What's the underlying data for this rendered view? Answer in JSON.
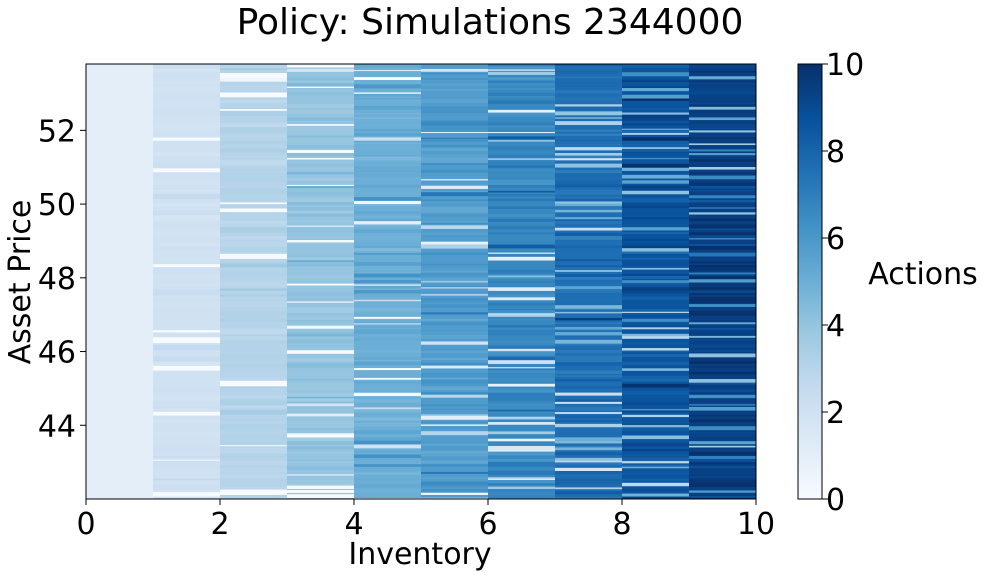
{
  "chart_data": {
    "type": "heatmap",
    "title": "Policy: Simulations 2344000",
    "xlabel": "Inventory",
    "ylabel": "Asset Price",
    "colorbar_label": "Actions",
    "colormap": "Blues",
    "xlim": [
      0,
      10
    ],
    "ylim": [
      42.0,
      53.8
    ],
    "xticks": [
      0,
      2,
      4,
      6,
      8,
      10
    ],
    "yticks": [
      44,
      46,
      48,
      50,
      52
    ],
    "colorbar_range": [
      0,
      10
    ],
    "colorbar_ticks": [
      0,
      2,
      4,
      6,
      8,
      10
    ],
    "columns": [
      {
        "inventory": [
          0,
          1
        ],
        "typical_action": 1.0
      },
      {
        "inventory": [
          1,
          2
        ],
        "typical_action": 2.0
      },
      {
        "inventory": [
          2,
          3
        ],
        "typical_action": 3.0
      },
      {
        "inventory": [
          3,
          4
        ],
        "typical_action": 4.0
      },
      {
        "inventory": [
          4,
          5
        ],
        "typical_action": 5.0
      },
      {
        "inventory": [
          5,
          6
        ],
        "typical_action": 5.8
      },
      {
        "inventory": [
          6,
          7
        ],
        "typical_action": 6.6
      },
      {
        "inventory": [
          7,
          8
        ],
        "typical_action": 7.6
      },
      {
        "inventory": [
          8,
          9
        ],
        "typical_action": 8.6
      },
      {
        "inventory": [
          9,
          10
        ],
        "typical_action": 9.4
      }
    ],
    "grid": false,
    "legend": "colorbar-right"
  }
}
